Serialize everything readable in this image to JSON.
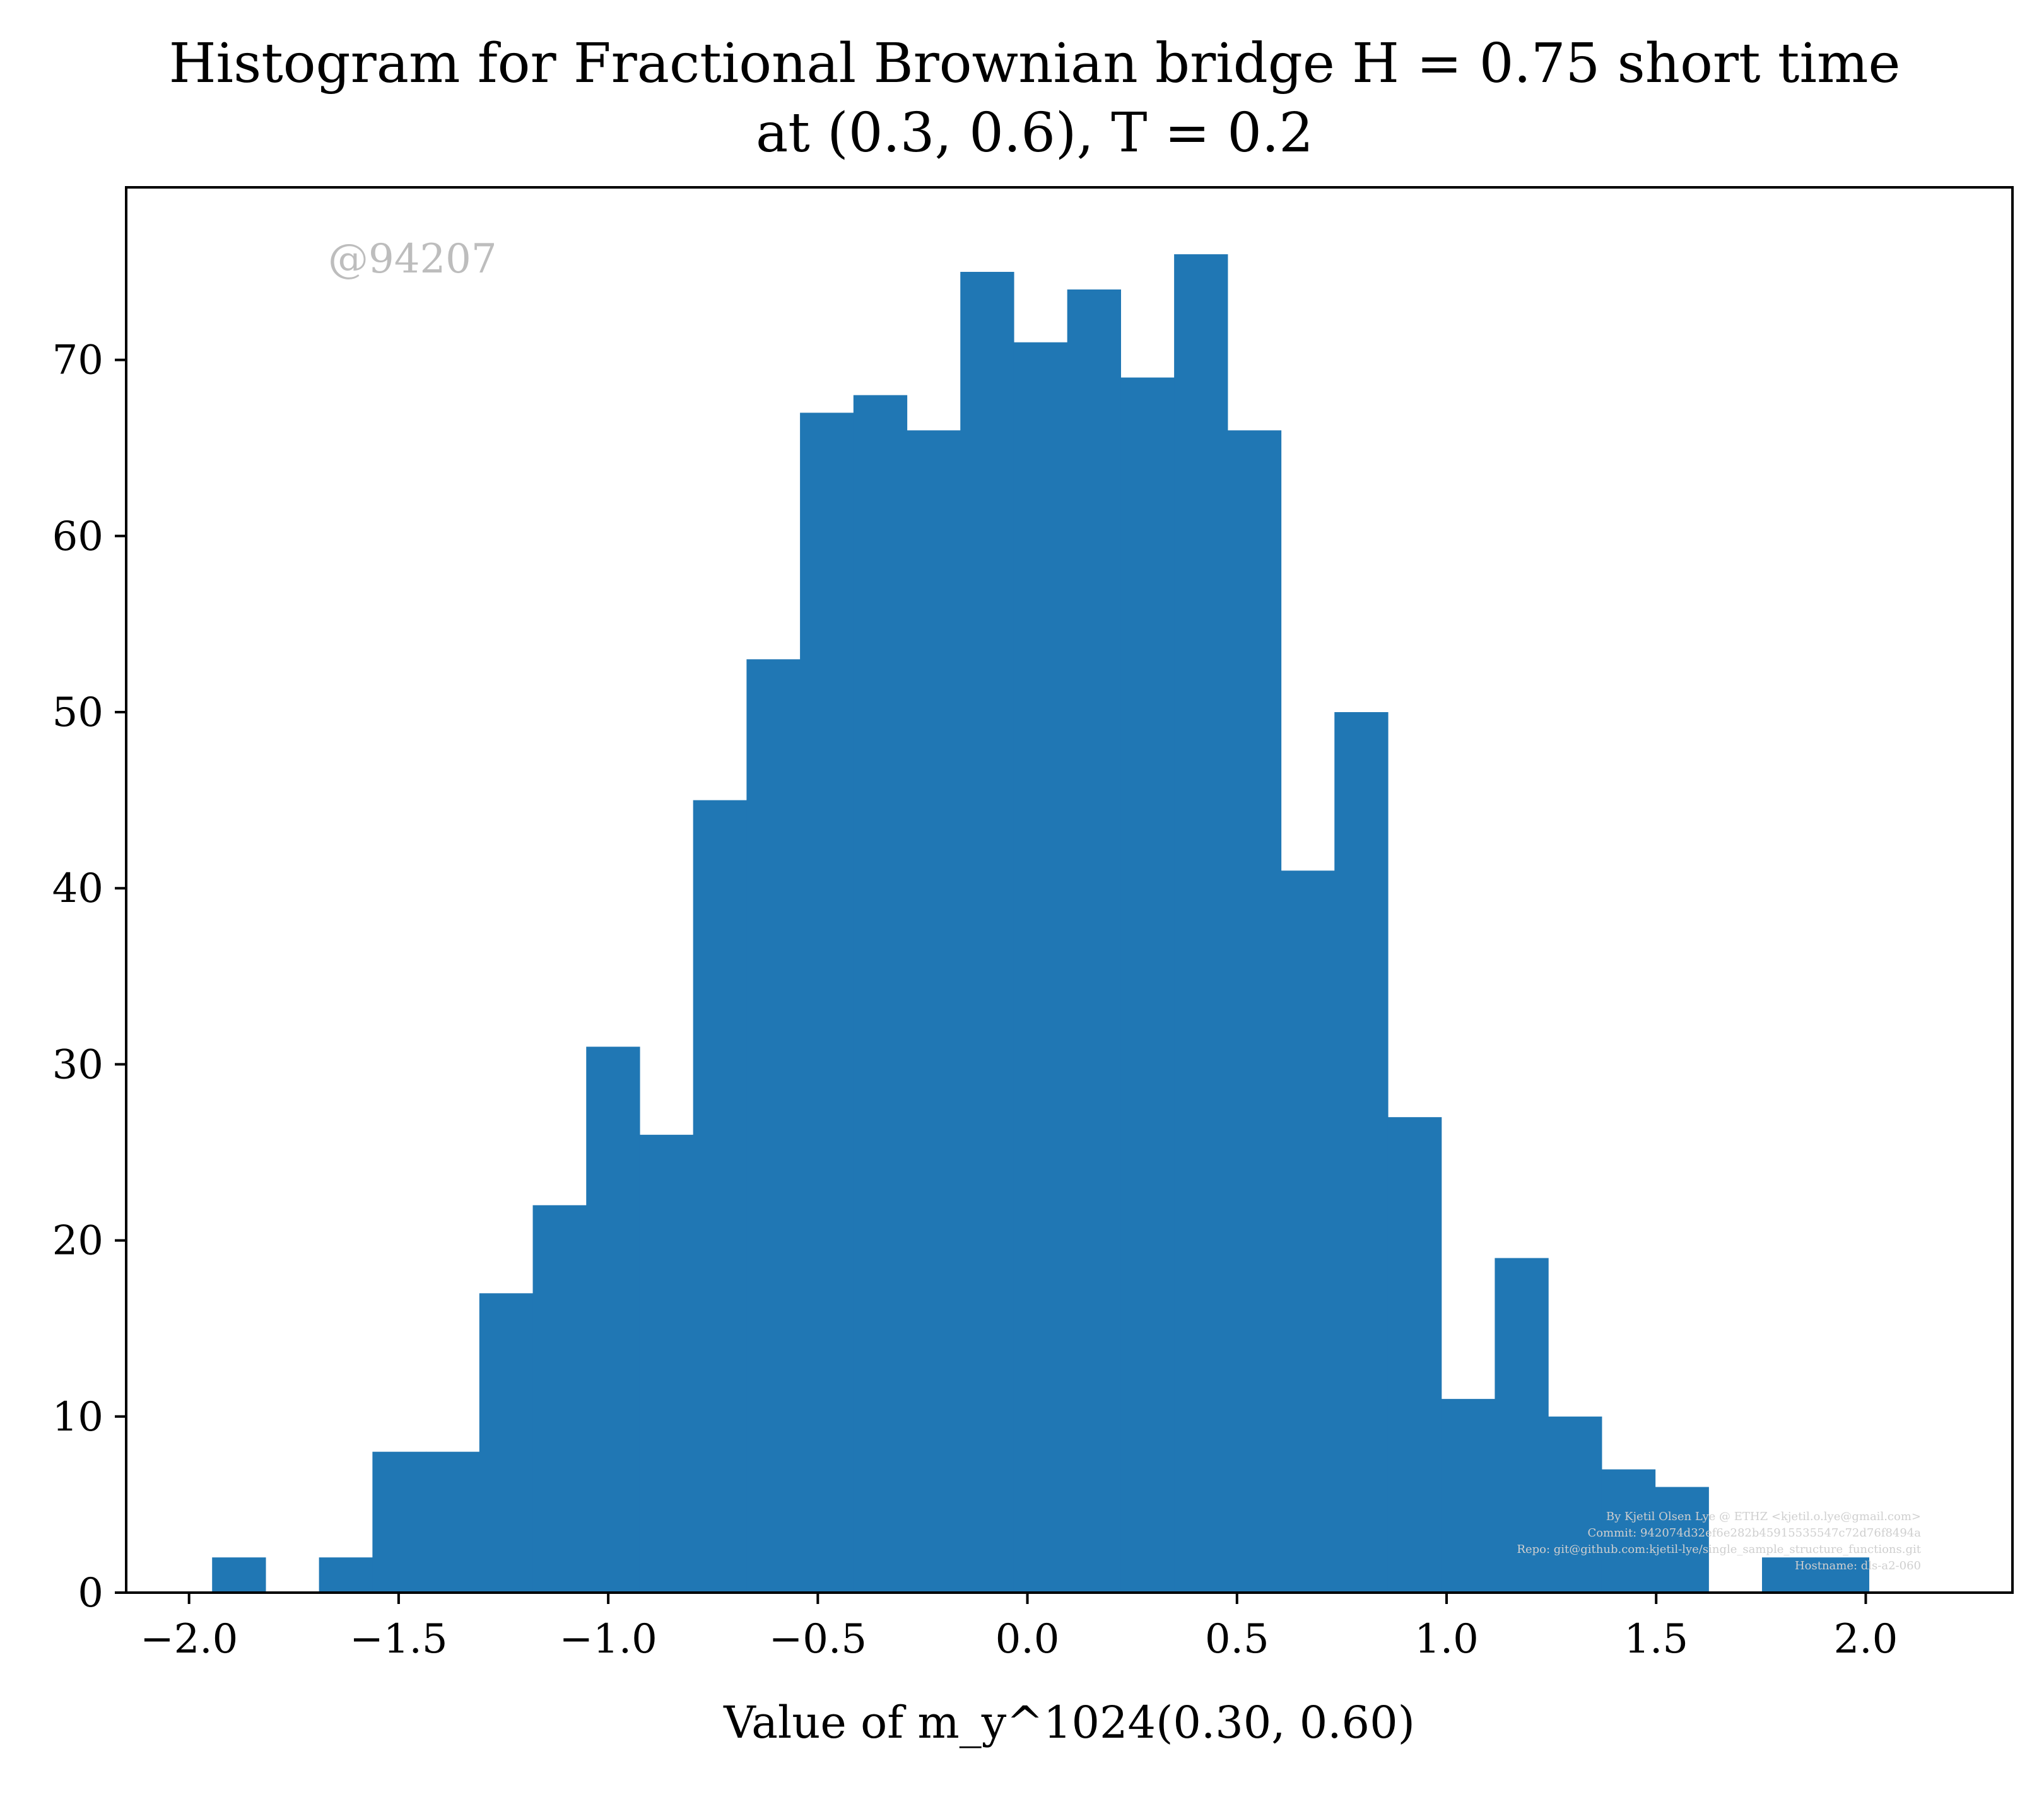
{
  "chart_data": {
    "type": "bar",
    "title_line1": "Histogram for Fractional Brownian bridge H = 0.75 short time",
    "title_line2": "at (0.3, 0.6), T = 0.2",
    "xlabel": "Value of m_y^1024(0.30, 0.60)",
    "ylabel": "",
    "watermark": "@94207",
    "credits": [
      "By Kjetil Olsen Lye @ ETHZ <kjetil.o.lye@gmail.com>",
      "Commit: 942074d32ef6e282b45915535547c72d76f8494a",
      "Repo: git@github.com:kjetil-lye/single_sample_structure_functions.git",
      "Hostname: dls-a2-060"
    ],
    "xlim": [
      -2.15,
      2.35
    ],
    "ylim": [
      0,
      79.8
    ],
    "xticks": [
      {
        "value": -2.0,
        "label": "−2.0"
      },
      {
        "value": -1.5,
        "label": "−1.5"
      },
      {
        "value": -1.0,
        "label": "−1.0"
      },
      {
        "value": -0.5,
        "label": "−0.5"
      },
      {
        "value": 0.0,
        "label": "0.0"
      },
      {
        "value": 0.5,
        "label": "0.5"
      },
      {
        "value": 1.0,
        "label": "1.0"
      },
      {
        "value": 1.5,
        "label": "1.5"
      },
      {
        "value": 2.0,
        "label": "2.0"
      }
    ],
    "yticks": [
      {
        "value": 0,
        "label": "0"
      },
      {
        "value": 10,
        "label": "10"
      },
      {
        "value": 20,
        "label": "20"
      },
      {
        "value": 30,
        "label": "30"
      },
      {
        "value": 40,
        "label": "40"
      },
      {
        "value": 50,
        "label": "50"
      },
      {
        "value": 60,
        "label": "60"
      },
      {
        "value": 70,
        "label": "70"
      }
    ],
    "bin_start": -1.945,
    "bin_width": 0.1275,
    "values": [
      2,
      0,
      2,
      8,
      8,
      17,
      22,
      31,
      26,
      45,
      53,
      67,
      68,
      66,
      75,
      71,
      74,
      69,
      76,
      66,
      41,
      50,
      27,
      11,
      19,
      10,
      7,
      6,
      0,
      2,
      2
    ],
    "bar_color": "#2077b4",
    "grid": false
  }
}
